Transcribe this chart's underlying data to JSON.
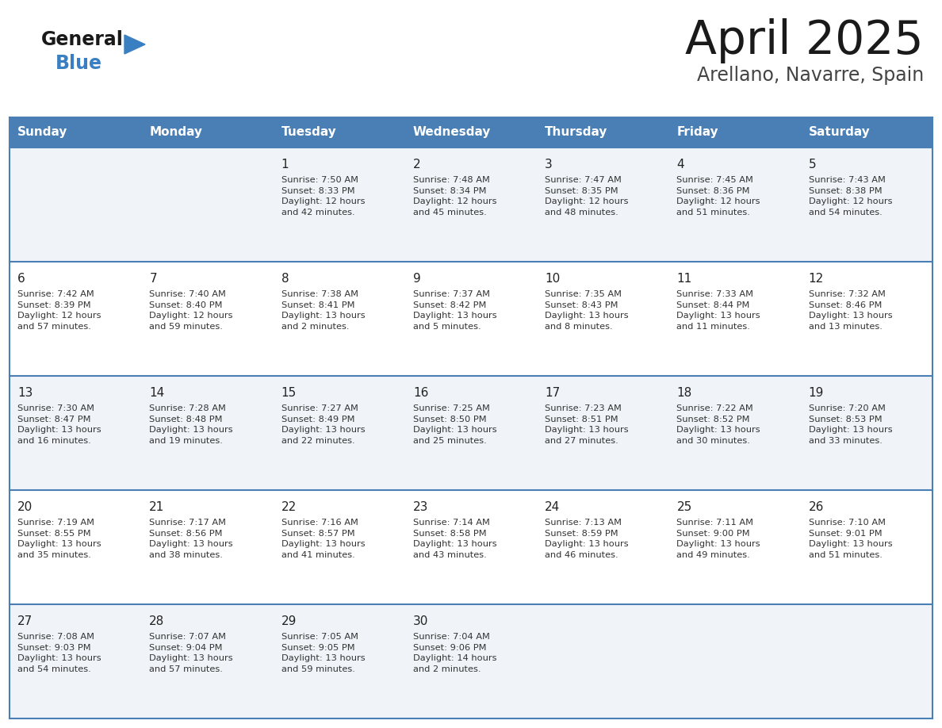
{
  "title": "April 2025",
  "subtitle": "Arellano, Navarre, Spain",
  "days_of_week": [
    "Sunday",
    "Monday",
    "Tuesday",
    "Wednesday",
    "Thursday",
    "Friday",
    "Saturday"
  ],
  "header_bg": "#4a7fb5",
  "header_text": "#ffffff",
  "row_bg_odd": "#f0f4f8",
  "row_bg_even": "#ffffff",
  "border_color": "#4a7fb5",
  "day_number_color": "#222222",
  "cell_text_color": "#333333",
  "title_color": "#1a1a1a",
  "subtitle_color": "#444444",
  "logo_general_color": "#1a1a1a",
  "logo_blue_color": "#3a7fc1",
  "calendar_data": [
    [
      {
        "day": null,
        "text": ""
      },
      {
        "day": null,
        "text": ""
      },
      {
        "day": 1,
        "text": "Sunrise: 7:50 AM\nSunset: 8:33 PM\nDaylight: 12 hours\nand 42 minutes."
      },
      {
        "day": 2,
        "text": "Sunrise: 7:48 AM\nSunset: 8:34 PM\nDaylight: 12 hours\nand 45 minutes."
      },
      {
        "day": 3,
        "text": "Sunrise: 7:47 AM\nSunset: 8:35 PM\nDaylight: 12 hours\nand 48 minutes."
      },
      {
        "day": 4,
        "text": "Sunrise: 7:45 AM\nSunset: 8:36 PM\nDaylight: 12 hours\nand 51 minutes."
      },
      {
        "day": 5,
        "text": "Sunrise: 7:43 AM\nSunset: 8:38 PM\nDaylight: 12 hours\nand 54 minutes."
      }
    ],
    [
      {
        "day": 6,
        "text": "Sunrise: 7:42 AM\nSunset: 8:39 PM\nDaylight: 12 hours\nand 57 minutes."
      },
      {
        "day": 7,
        "text": "Sunrise: 7:40 AM\nSunset: 8:40 PM\nDaylight: 12 hours\nand 59 minutes."
      },
      {
        "day": 8,
        "text": "Sunrise: 7:38 AM\nSunset: 8:41 PM\nDaylight: 13 hours\nand 2 minutes."
      },
      {
        "day": 9,
        "text": "Sunrise: 7:37 AM\nSunset: 8:42 PM\nDaylight: 13 hours\nand 5 minutes."
      },
      {
        "day": 10,
        "text": "Sunrise: 7:35 AM\nSunset: 8:43 PM\nDaylight: 13 hours\nand 8 minutes."
      },
      {
        "day": 11,
        "text": "Sunrise: 7:33 AM\nSunset: 8:44 PM\nDaylight: 13 hours\nand 11 minutes."
      },
      {
        "day": 12,
        "text": "Sunrise: 7:32 AM\nSunset: 8:46 PM\nDaylight: 13 hours\nand 13 minutes."
      }
    ],
    [
      {
        "day": 13,
        "text": "Sunrise: 7:30 AM\nSunset: 8:47 PM\nDaylight: 13 hours\nand 16 minutes."
      },
      {
        "day": 14,
        "text": "Sunrise: 7:28 AM\nSunset: 8:48 PM\nDaylight: 13 hours\nand 19 minutes."
      },
      {
        "day": 15,
        "text": "Sunrise: 7:27 AM\nSunset: 8:49 PM\nDaylight: 13 hours\nand 22 minutes."
      },
      {
        "day": 16,
        "text": "Sunrise: 7:25 AM\nSunset: 8:50 PM\nDaylight: 13 hours\nand 25 minutes."
      },
      {
        "day": 17,
        "text": "Sunrise: 7:23 AM\nSunset: 8:51 PM\nDaylight: 13 hours\nand 27 minutes."
      },
      {
        "day": 18,
        "text": "Sunrise: 7:22 AM\nSunset: 8:52 PM\nDaylight: 13 hours\nand 30 minutes."
      },
      {
        "day": 19,
        "text": "Sunrise: 7:20 AM\nSunset: 8:53 PM\nDaylight: 13 hours\nand 33 minutes."
      }
    ],
    [
      {
        "day": 20,
        "text": "Sunrise: 7:19 AM\nSunset: 8:55 PM\nDaylight: 13 hours\nand 35 minutes."
      },
      {
        "day": 21,
        "text": "Sunrise: 7:17 AM\nSunset: 8:56 PM\nDaylight: 13 hours\nand 38 minutes."
      },
      {
        "day": 22,
        "text": "Sunrise: 7:16 AM\nSunset: 8:57 PM\nDaylight: 13 hours\nand 41 minutes."
      },
      {
        "day": 23,
        "text": "Sunrise: 7:14 AM\nSunset: 8:58 PM\nDaylight: 13 hours\nand 43 minutes."
      },
      {
        "day": 24,
        "text": "Sunrise: 7:13 AM\nSunset: 8:59 PM\nDaylight: 13 hours\nand 46 minutes."
      },
      {
        "day": 25,
        "text": "Sunrise: 7:11 AM\nSunset: 9:00 PM\nDaylight: 13 hours\nand 49 minutes."
      },
      {
        "day": 26,
        "text": "Sunrise: 7:10 AM\nSunset: 9:01 PM\nDaylight: 13 hours\nand 51 minutes."
      }
    ],
    [
      {
        "day": 27,
        "text": "Sunrise: 7:08 AM\nSunset: 9:03 PM\nDaylight: 13 hours\nand 54 minutes."
      },
      {
        "day": 28,
        "text": "Sunrise: 7:07 AM\nSunset: 9:04 PM\nDaylight: 13 hours\nand 57 minutes."
      },
      {
        "day": 29,
        "text": "Sunrise: 7:05 AM\nSunset: 9:05 PM\nDaylight: 13 hours\nand 59 minutes."
      },
      {
        "day": 30,
        "text": "Sunrise: 7:04 AM\nSunset: 9:06 PM\nDaylight: 14 hours\nand 2 minutes."
      },
      {
        "day": null,
        "text": ""
      },
      {
        "day": null,
        "text": ""
      },
      {
        "day": null,
        "text": ""
      }
    ]
  ]
}
